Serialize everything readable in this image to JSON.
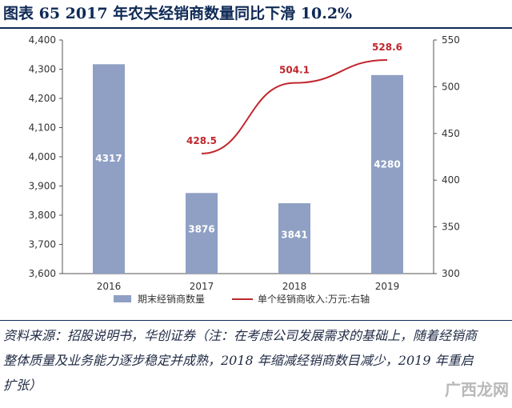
{
  "title": "图表 65   2017 年农夫经销商数量同比下滑 10.2%",
  "source": "资料来源：招股说明书，华创证券（注：在考虑公司发展需求的基础上，随着经销商整体质量及业务能力逐步稳定并成熟，2018 年缩减经销商数目减少，2019 年重启扩张）",
  "watermark": "广西龙网",
  "colors": {
    "bar": "#8fa0c4",
    "line": "#c0272d",
    "title": "#0f2a56"
  },
  "chart_data": {
    "type": "bar",
    "categories": [
      "2016",
      "2017",
      "2018",
      "2019"
    ],
    "left_axis": {
      "ylim": [
        3600,
        4400
      ],
      "ticks": [
        "3,600",
        "3,700",
        "3,800",
        "3,900",
        "4,000",
        "4,100",
        "4,200",
        "4,300",
        "4,400"
      ]
    },
    "right_axis": {
      "ylim": [
        300,
        550
      ],
      "ticks": [
        "300",
        "350",
        "400",
        "450",
        "500",
        "550"
      ]
    },
    "series": [
      {
        "name": "期末经销商数量",
        "type": "bar",
        "axis": "left",
        "values": [
          4317,
          3876,
          3841,
          4280
        ],
        "labels": [
          "4317",
          "3876",
          "3841",
          "4280"
        ]
      },
      {
        "name": "单个经销商收入:万元:右轴",
        "type": "line",
        "axis": "right",
        "values": [
          null,
          428.5,
          504.1,
          528.6
        ],
        "labels": [
          "",
          "428.5",
          "504.1",
          "528.6"
        ]
      }
    ],
    "legend_position": "bottom"
  }
}
